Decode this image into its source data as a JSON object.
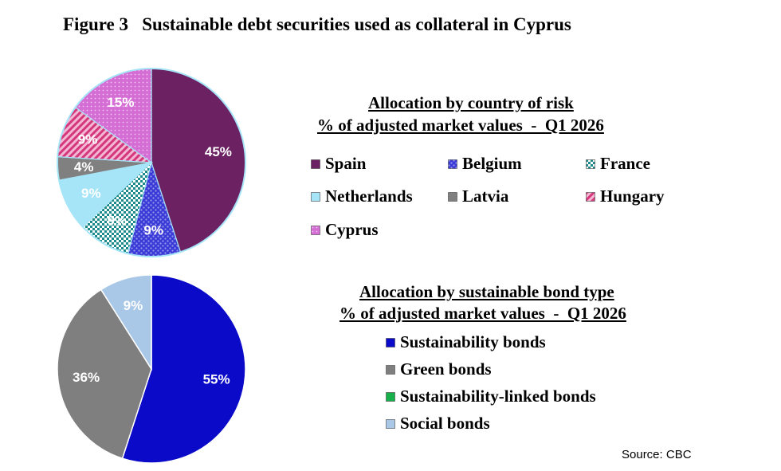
{
  "figure_title": "Figure 3   Sustainable debt securities used as collateral in Cyprus",
  "source": "Source: CBC",
  "chart_data": [
    {
      "type": "pie",
      "title": "Allocation by country of risk",
      "subtitle": "% of adjusted market values  -  Q1 2026",
      "legend_position": "right",
      "slices": [
        {
          "label": "Spain",
          "value": 45,
          "value_label": "45%",
          "color": "#6b2162",
          "pattern": "solid"
        },
        {
          "label": "Belgium",
          "value": 9,
          "value_label": "9%",
          "color": "#3a3ad6",
          "pattern": "dots"
        },
        {
          "label": "France",
          "value": 9,
          "value_label": "9%",
          "color": "#1c8a8a",
          "pattern": "checker"
        },
        {
          "label": "Netherlands",
          "value": 9,
          "value_label": "9%",
          "color": "#a6e4f7",
          "pattern": "solid"
        },
        {
          "label": "Latvia",
          "value": 4,
          "value_label": "4%",
          "color": "#808080",
          "pattern": "solid"
        },
        {
          "label": "Hungary",
          "value": 9,
          "value_label": "9%",
          "color": "#d4377c",
          "pattern": "diagonal"
        },
        {
          "label": "Cyprus",
          "value": 15,
          "value_label": "15%",
          "color": "#cc5fcc",
          "pattern": "dots-light"
        }
      ]
    },
    {
      "type": "pie",
      "title": "Allocation by sustainable bond type",
      "subtitle": "% of adjusted market values  -  Q1 2026",
      "legend_position": "right",
      "slices": [
        {
          "label": "Sustainability bonds",
          "value": 55,
          "value_label": "55%",
          "color": "#0a0ac8",
          "pattern": "solid"
        },
        {
          "label": "Green bonds",
          "value": 36,
          "value_label": "36%",
          "color": "#7f7f7f",
          "pattern": "solid"
        },
        {
          "label": "Sustainability-linked bonds",
          "value": 0,
          "value_label": "",
          "color": "#18b04a",
          "pattern": "solid"
        },
        {
          "label": "Social bonds",
          "value": 9,
          "value_label": "9%",
          "color": "#a9c8e8",
          "pattern": "solid"
        }
      ]
    }
  ]
}
